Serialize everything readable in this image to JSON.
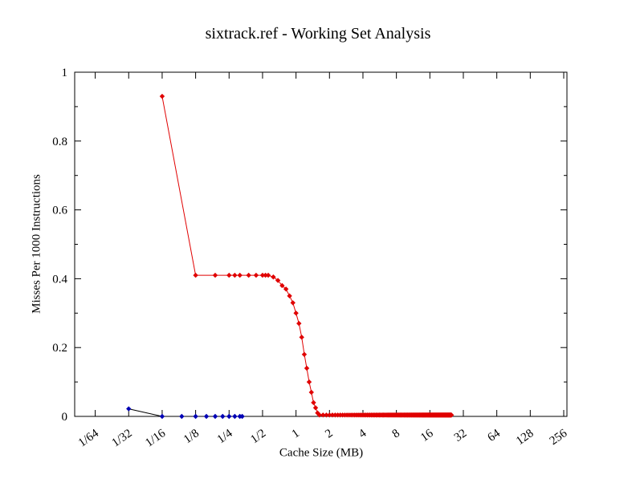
{
  "chart_data": {
    "type": "line",
    "title": "sixtrack.ref - Working Set Analysis",
    "xlabel": "Cache Size (MB)",
    "ylabel": "Misses Per 1000 Instructions",
    "x_scale": "log2",
    "grid": false,
    "legend": false,
    "background": "#ffffff",
    "border_color": "#000000",
    "ylim": [
      0,
      1
    ],
    "x_ticks": [
      {
        "value": 0.015625,
        "label": "1/64"
      },
      {
        "value": 0.03125,
        "label": "1/32"
      },
      {
        "value": 0.0625,
        "label": "1/16"
      },
      {
        "value": 0.125,
        "label": "1/8"
      },
      {
        "value": 0.25,
        "label": "1/4"
      },
      {
        "value": 0.5,
        "label": "1/2"
      },
      {
        "value": 1,
        "label": "1"
      },
      {
        "value": 2,
        "label": "2"
      },
      {
        "value": 4,
        "label": "4"
      },
      {
        "value": 8,
        "label": "8"
      },
      {
        "value": 16,
        "label": "16"
      },
      {
        "value": 32,
        "label": "32"
      },
      {
        "value": 64,
        "label": "64"
      },
      {
        "value": 128,
        "label": "128"
      },
      {
        "value": 256,
        "label": "256"
      }
    ],
    "y_ticks": [
      {
        "value": 0,
        "label": "0"
      },
      {
        "value": 0.2,
        "label": "0.2"
      },
      {
        "value": 0.4,
        "label": "0.4"
      },
      {
        "value": 0.6,
        "label": "0.6"
      },
      {
        "value": 0.8,
        "label": "0.8"
      },
      {
        "value": 1,
        "label": "1"
      }
    ],
    "y_minor_ticks": [
      0.1,
      0.3,
      0.5,
      0.7,
      0.9
    ],
    "series": [
      {
        "name": "red-series",
        "color": "#e00000",
        "line_color": "#e00000",
        "marker": "diamond",
        "points": [
          [
            0.0625,
            0.93
          ],
          [
            0.125,
            0.41
          ],
          [
            0.1875,
            0.41
          ],
          [
            0.25,
            0.41
          ],
          [
            0.28125,
            0.41
          ],
          [
            0.3125,
            0.41
          ],
          [
            0.375,
            0.41
          ],
          [
            0.4375,
            0.41
          ],
          [
            0.5,
            0.41
          ],
          [
            0.53125,
            0.41
          ],
          [
            0.5625,
            0.41
          ],
          [
            0.625,
            0.405
          ],
          [
            0.6875,
            0.395
          ],
          [
            0.75,
            0.38
          ],
          [
            0.8125,
            0.37
          ],
          [
            0.875,
            0.35
          ],
          [
            0.9375,
            0.33
          ],
          [
            1.0,
            0.3
          ],
          [
            1.0625,
            0.27
          ],
          [
            1.125,
            0.23
          ],
          [
            1.1875,
            0.18
          ],
          [
            1.25,
            0.14
          ],
          [
            1.3125,
            0.1
          ],
          [
            1.375,
            0.07
          ],
          [
            1.4375,
            0.04
          ],
          [
            1.5,
            0.025
          ],
          [
            1.5625,
            0.01
          ]
        ],
        "zero_tail": {
          "from": 1.625,
          "to": 25,
          "step": 0.125,
          "y": 0.004
        }
      },
      {
        "name": "blue-series",
        "color": "#0000b4",
        "line_color": "#000000",
        "marker": "diamond",
        "points": [
          [
            0.03125,
            0.022
          ],
          [
            0.0625,
            0
          ],
          [
            0.09375,
            0
          ],
          [
            0.125,
            0
          ],
          [
            0.15625,
            0
          ],
          [
            0.1875,
            0
          ],
          [
            0.21875,
            0
          ],
          [
            0.25,
            0
          ],
          [
            0.28125,
            0
          ],
          [
            0.3125,
            0
          ],
          [
            0.328125,
            0
          ]
        ]
      }
    ]
  }
}
